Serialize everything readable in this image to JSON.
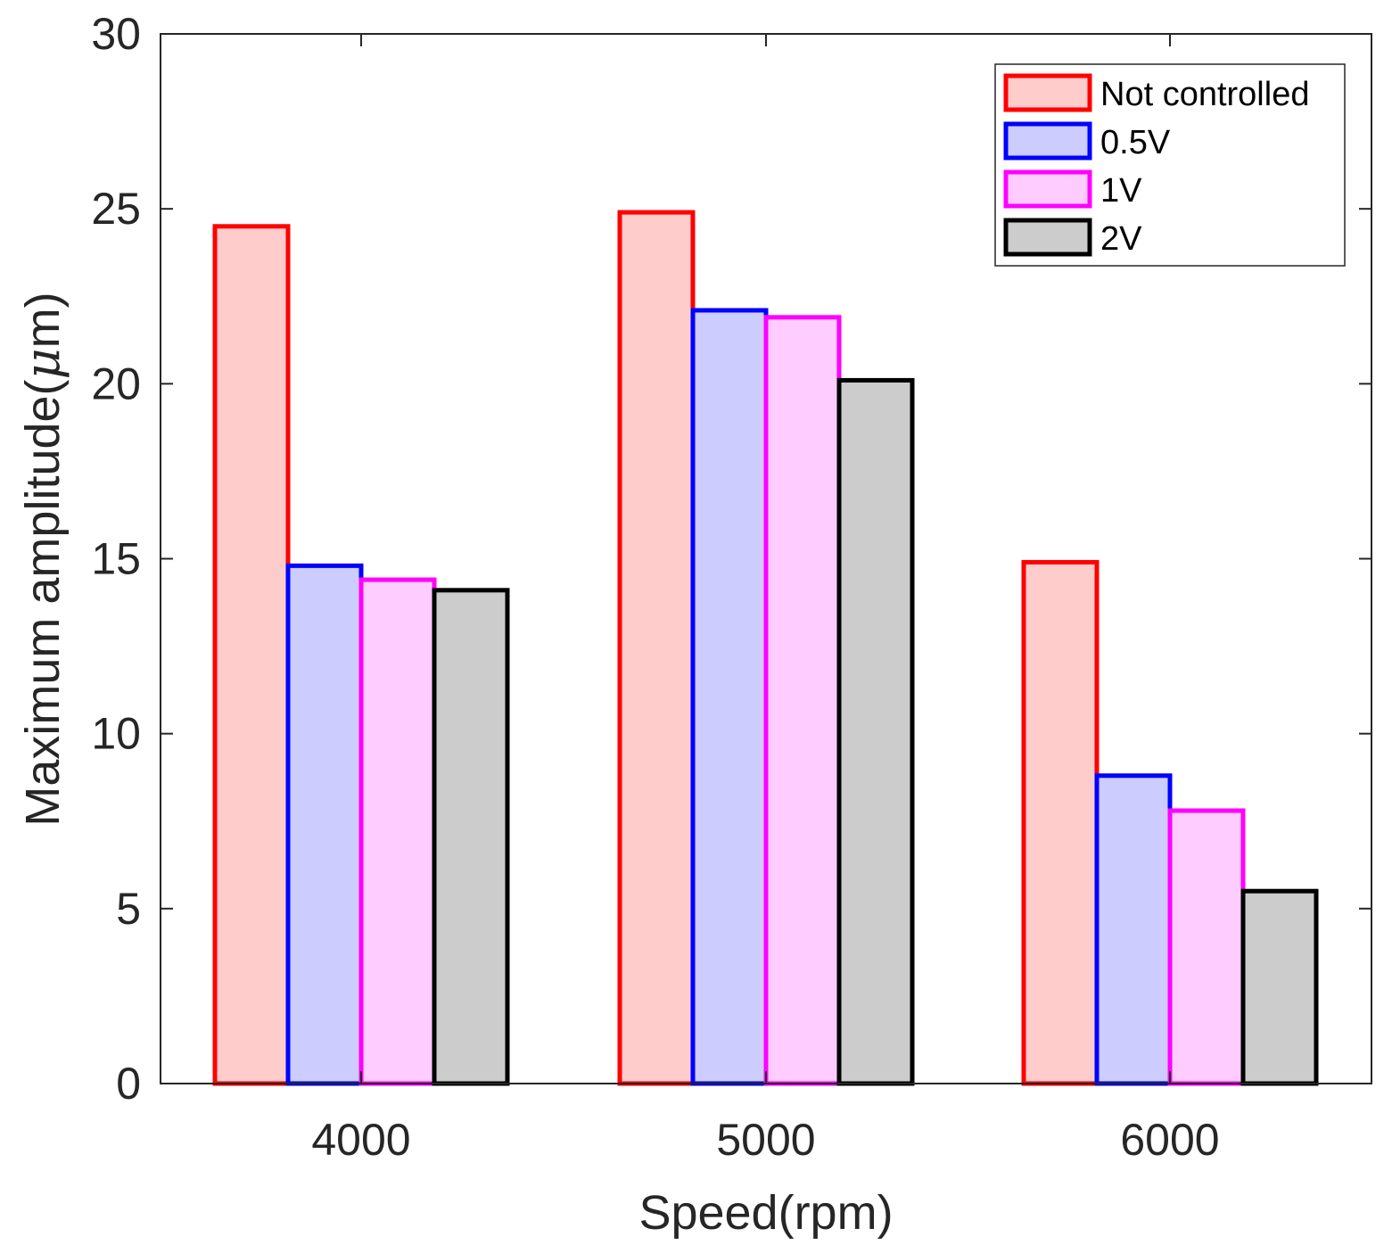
{
  "chart_data": {
    "type": "bar",
    "title": "",
    "xlabel": "Speed(rpm)",
    "ylabel_main": "Maximum amplitude(",
    "ylabel_mu": "μ",
    "ylabel_end": "m)",
    "categories": [
      "4000",
      "5000",
      "6000"
    ],
    "ylim": [
      0,
      30
    ],
    "yticks": [
      0,
      5,
      10,
      15,
      20,
      25,
      30
    ],
    "ytick_labels": [
      "0",
      "5",
      "10",
      "15",
      "20",
      "25",
      "30"
    ],
    "legend_position": "top-right",
    "series": [
      {
        "name": "Not controlled",
        "values": [
          24.5,
          24.9,
          14.9
        ],
        "edge_color": "#ff0000",
        "fill_color": "#ffcccc"
      },
      {
        "name": "0.5V",
        "values": [
          14.8,
          22.1,
          8.8
        ],
        "edge_color": "#0000ff",
        "fill_color": "#ccccff"
      },
      {
        "name": "1V",
        "values": [
          14.4,
          21.9,
          7.8
        ],
        "edge_color": "#ff00ff",
        "fill_color": "#ffccff"
      },
      {
        "name": "2V",
        "values": [
          14.1,
          20.1,
          5.5
        ],
        "edge_color": "#000000",
        "fill_color": "#cccccc"
      }
    ]
  }
}
